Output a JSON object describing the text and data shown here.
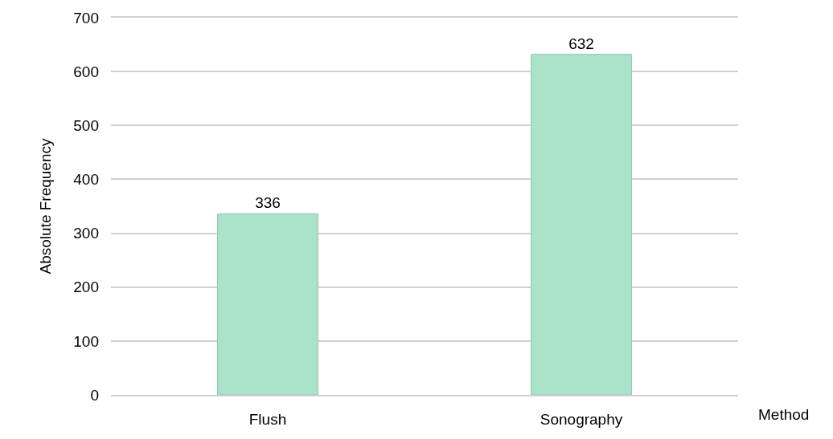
{
  "chart_data": {
    "type": "bar",
    "xlabel": "Method",
    "ylabel": "Absolute Frequency",
    "categories": [
      "Flush",
      "Sonography"
    ],
    "values": [
      336,
      632
    ],
    "color": "#abe2ca",
    "ylim": [
      0,
      700
    ],
    "yticks": [
      0,
      100,
      200,
      300,
      400,
      500,
      600,
      700
    ],
    "grid": "y",
    "data_labels": true
  }
}
